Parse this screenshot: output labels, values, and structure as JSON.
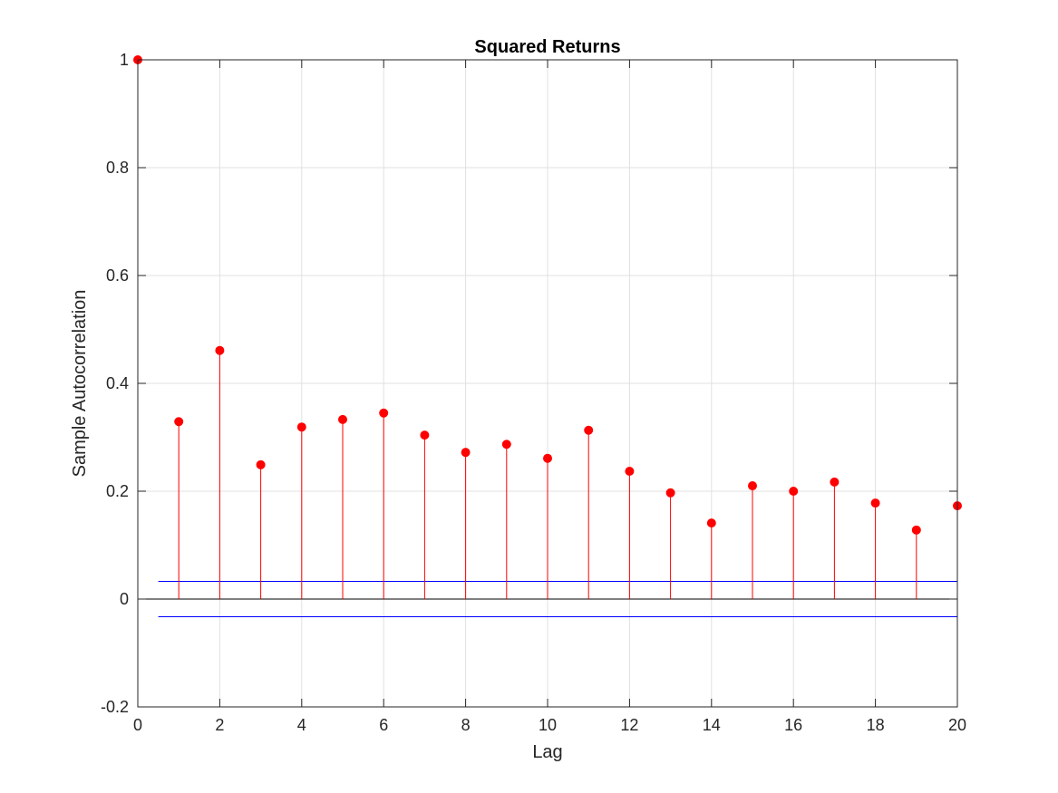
{
  "chart_data": {
    "type": "stem",
    "title": "Squared Returns",
    "xlabel": "Lag",
    "ylabel": "Sample Autocorrelation",
    "xlim": [
      0,
      20
    ],
    "ylim": [
      -0.2,
      1
    ],
    "xticks": [
      "0",
      "2",
      "4",
      "6",
      "8",
      "10",
      "12",
      "14",
      "16",
      "18",
      "20"
    ],
    "yticks": [
      "-0.2",
      "0",
      "0.2",
      "0.4",
      "0.6",
      "0.8",
      "1"
    ],
    "grid": true,
    "x": [
      0,
      1,
      2,
      3,
      4,
      5,
      6,
      7,
      8,
      9,
      10,
      11,
      12,
      13,
      14,
      15,
      16,
      17,
      18,
      19,
      20
    ],
    "values": [
      1.0,
      0.329,
      0.461,
      0.249,
      0.319,
      0.333,
      0.345,
      0.304,
      0.272,
      0.287,
      0.261,
      0.313,
      0.237,
      0.197,
      0.141,
      0.21,
      0.2,
      0.217,
      0.178,
      0.128,
      0.173
    ],
    "confidence_bounds": {
      "upper": 0.0327,
      "lower": -0.0327,
      "x_start": 0.5,
      "x_end": 20
    },
    "colors": {
      "stems": "#ff0000",
      "bounds": "#0000ff",
      "zero_line": "#000000",
      "grid": "#e0e0e0",
      "axes": "#262626"
    }
  }
}
